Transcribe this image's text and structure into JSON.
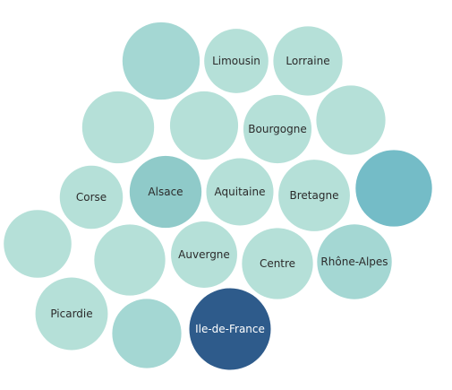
{
  "chart_data": {
    "type": "bubble",
    "title": "",
    "colors": {
      "scale": [
        "#b5e0d8",
        "#a4d7d3",
        "#8fcac9",
        "#74bcc7",
        "#2e5b8b"
      ],
      "label_dark": "#2b2b2b",
      "label_light": "#ffffff"
    },
    "bubbles": [
      {
        "label": "",
        "size": 90,
        "shade": 1
      },
      {
        "label": "Limousin",
        "size": 62,
        "shade": 0
      },
      {
        "label": "Lorraine",
        "size": 72,
        "shade": 0
      },
      {
        "label": "",
        "size": 78,
        "shade": 0
      },
      {
        "label": "",
        "size": 70,
        "shade": 0
      },
      {
        "label": "Bourgogne",
        "size": 70,
        "shade": 0
      },
      {
        "label": "",
        "size": 72,
        "shade": 0
      },
      {
        "label": "Corse",
        "size": 60,
        "shade": 0
      },
      {
        "label": "Alsace",
        "size": 78,
        "shade": 2
      },
      {
        "label": "Aquitaine",
        "size": 68,
        "shade": 0
      },
      {
        "label": "Bretagne",
        "size": 77,
        "shade": 0
      },
      {
        "label": "",
        "size": 88,
        "shade": 3
      },
      {
        "label": "",
        "size": 69,
        "shade": 0
      },
      {
        "label": "",
        "size": 76,
        "shade": 0
      },
      {
        "label": "Auvergne",
        "size": 66,
        "shade": 0
      },
      {
        "label": "Centre",
        "size": 76,
        "shade": 0
      },
      {
        "label": "Rhône-Alpes",
        "size": 84,
        "shade": 1
      },
      {
        "label": "Picardie",
        "size": 79,
        "shade": 0
      },
      {
        "label": "",
        "size": 72,
        "shade": 1
      },
      {
        "label": "Ile-de-France",
        "size": 100,
        "shade": 4
      }
    ]
  }
}
